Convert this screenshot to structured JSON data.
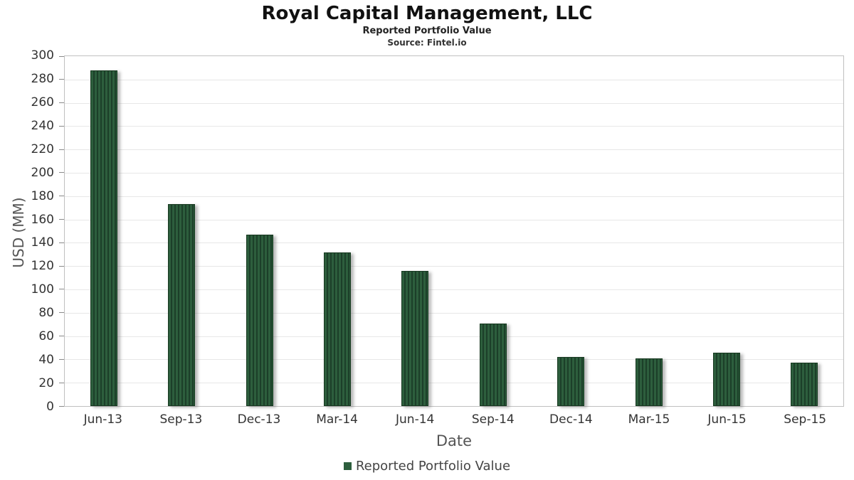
{
  "chart_data": {
    "type": "bar",
    "title": "Royal Capital Management, LLC",
    "subtitle": "Reported Portfolio Value",
    "source": "Source: Fintel.io",
    "xlabel": "Date",
    "ylabel": "USD (MM)",
    "categories": [
      "Jun-13",
      "Sep-13",
      "Dec-13",
      "Mar-14",
      "Jun-14",
      "Sep-14",
      "Dec-14",
      "Mar-15",
      "Jun-15",
      "Sep-15"
    ],
    "values": [
      288,
      173,
      147,
      132,
      116,
      71,
      42,
      41,
      46,
      37
    ],
    "ylim": [
      0,
      300
    ],
    "ytick_step": 20,
    "grid": "horizontal",
    "legend_position": "bottom",
    "legend": [
      "Reported Portfolio Value"
    ],
    "colors": {
      "bar": "#2d5e3d",
      "bar_stripe": "#1c3f29",
      "bar_border": "#16381f"
    }
  }
}
